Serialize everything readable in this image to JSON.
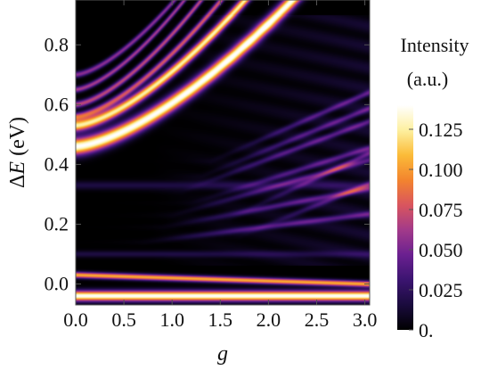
{
  "chart_data": {
    "type": "heatmap",
    "title": "",
    "xlabel": "g",
    "ylabel_prefix": "Δ",
    "ylabel_var": "E",
    "ylabel_unit": " (eV)",
    "x_range": [
      0.0,
      3.05
    ],
    "y_range": [
      -0.07,
      0.95
    ],
    "x_ticks": [
      {
        "value": 0.0,
        "label": "0.0"
      },
      {
        "value": 0.5,
        "label": "0.5"
      },
      {
        "value": 1.0,
        "label": "1.0"
      },
      {
        "value": 1.5,
        "label": "1.5"
      },
      {
        "value": 2.0,
        "label": "2.0"
      },
      {
        "value": 2.5,
        "label": "2.5"
      },
      {
        "value": 3.0,
        "label": "3.0"
      }
    ],
    "y_ticks": [
      {
        "value": 0.0,
        "label": "0.0"
      },
      {
        "value": 0.2,
        "label": "0.2"
      },
      {
        "value": 0.4,
        "label": "0.4"
      },
      {
        "value": 0.6,
        "label": "0.6"
      },
      {
        "value": 0.8,
        "label": "0.8"
      }
    ],
    "colorbar": {
      "title_line1": "Intensity",
      "title_line2": "(a.u.)",
      "range": [
        0.0,
        0.14
      ],
      "ticks": [
        {
          "value": 0.125,
          "label": "0.125"
        },
        {
          "value": 0.1,
          "label": "0.100"
        },
        {
          "value": 0.075,
          "label": "0.075"
        },
        {
          "value": 0.05,
          "label": "0.050"
        },
        {
          "value": 0.025,
          "label": "0.025"
        },
        {
          "value": 0.0,
          "label": "0."
        }
      ],
      "gradient_stops": [
        "#000000",
        "#1a0b3d",
        "#3b1470",
        "#6a2090",
        "#a23a8a",
        "#d9555e",
        "#f3842e",
        "#fbbb38",
        "#fdf0a0",
        "#ffffff"
      ]
    },
    "bands": [
      {
        "e0": -0.04,
        "a": 0.0,
        "p": 1,
        "width": 0.012,
        "amp": 1.0
      },
      {
        "e0": 0.03,
        "a": -0.01,
        "p": 1,
        "width": 0.007,
        "amp": 0.75
      },
      {
        "e0": 0.46,
        "a": 0.145,
        "p": 1.5,
        "width": 0.02,
        "amp": 1.0
      },
      {
        "e0": 0.53,
        "a": 0.18,
        "p": 1.5,
        "width": 0.014,
        "amp": 0.9
      },
      {
        "e0": 0.56,
        "a": 0.21,
        "p": 1.5,
        "width": 0.009,
        "amp": 0.55
      },
      {
        "e0": 0.6,
        "a": 0.235,
        "p": 1.5,
        "width": 0.008,
        "amp": 0.5
      },
      {
        "e0": 0.65,
        "a": 0.25,
        "p": 1.5,
        "width": 0.007,
        "amp": 0.45
      },
      {
        "e0": 0.7,
        "a": 0.24,
        "p": 1.5,
        "width": 0.007,
        "amp": 0.4
      },
      {
        "e0": 0.1,
        "a": 0.0,
        "p": 1,
        "width": 0.008,
        "amp": 0.12
      },
      {
        "e0": 0.33,
        "a": 0.0,
        "p": 1,
        "width": 0.01,
        "amp": 0.12
      }
    ],
    "faint_bands": [
      {
        "e0": 0.14,
        "a": 0.04,
        "g0": 1.3
      },
      {
        "e0": 0.19,
        "a": 0.06,
        "g0": 1.5
      },
      {
        "e0": 0.23,
        "a": 0.09,
        "g0": 1.6
      },
      {
        "e0": 0.27,
        "a": 0.1,
        "g0": 1.8
      },
      {
        "e0": 0.31,
        "a": 0.12,
        "g0": 1.7
      },
      {
        "e0": 0.36,
        "a": 0.13,
        "g0": 1.9
      },
      {
        "e0": 0.41,
        "a": 0.14,
        "g0": 2.0
      },
      {
        "e0": 0.22,
        "a": 0.15,
        "g0": 2.2
      },
      {
        "e0": 0.16,
        "a": 0.13,
        "g0": 2.3
      }
    ]
  }
}
